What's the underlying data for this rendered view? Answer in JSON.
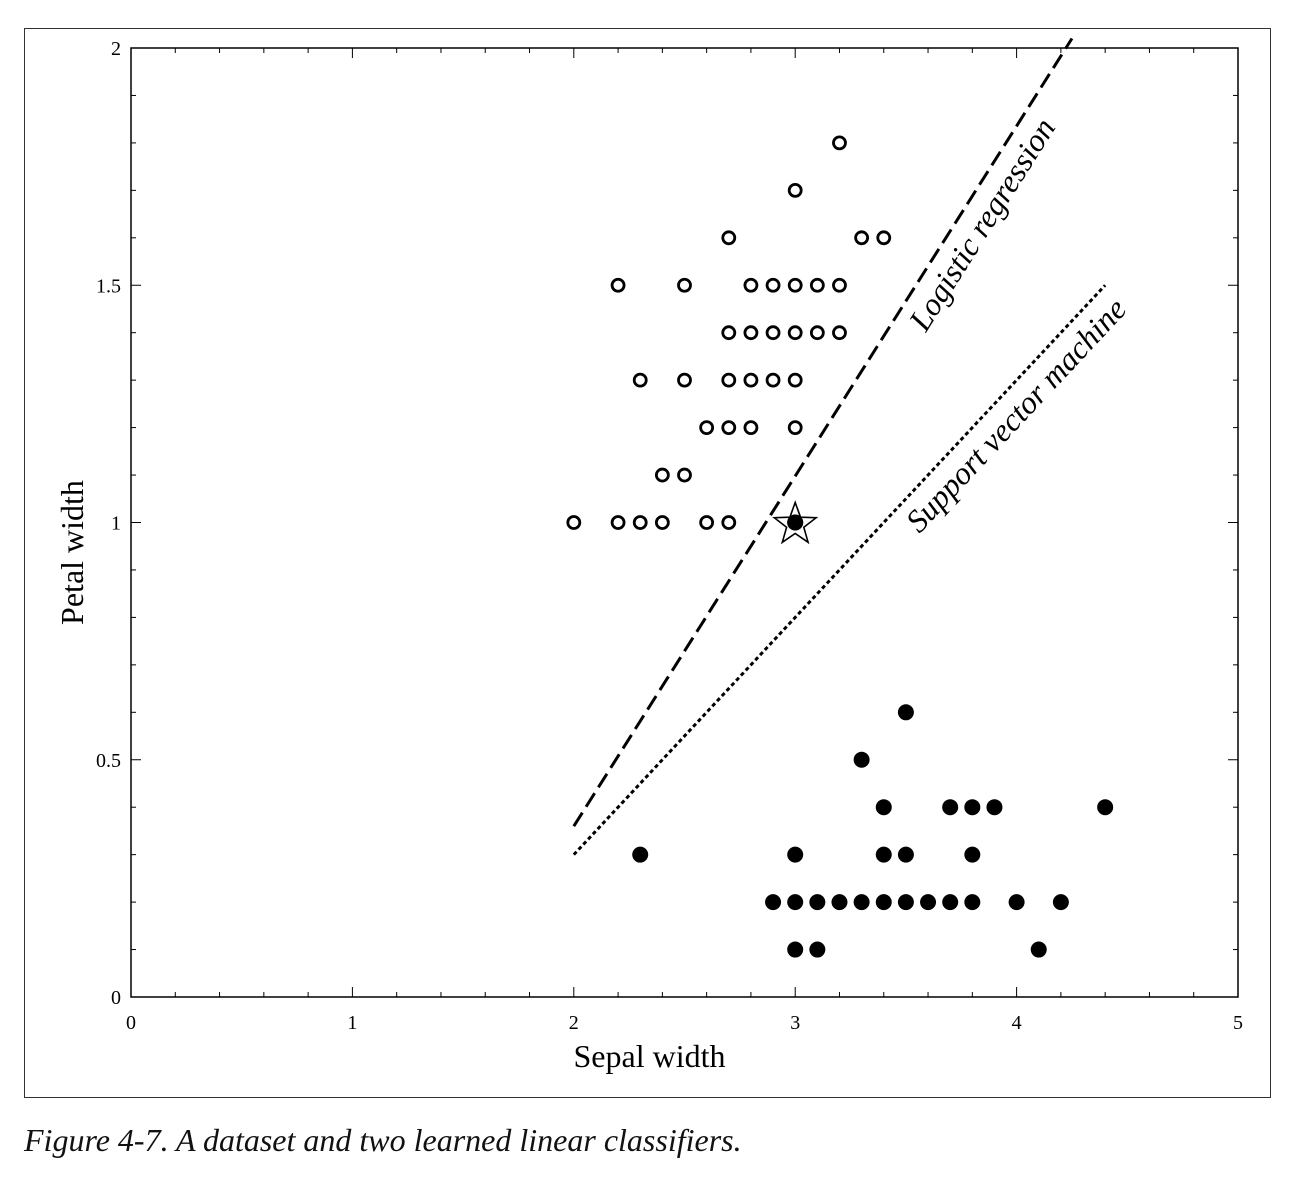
{
  "caption": "Figure 4-7. A dataset and two learned linear classifiers.",
  "chart_data": {
    "type": "scatter",
    "title": "",
    "xlabel": "Sepal width",
    "ylabel": "Petal width",
    "xlim": [
      0,
      5
    ],
    "ylim": [
      0,
      2
    ],
    "x_ticks": [
      0,
      1,
      2,
      3,
      4,
      5
    ],
    "y_ticks": [
      0,
      0.5,
      1,
      1.5,
      2
    ],
    "x_tick_labels": [
      "0",
      "1",
      "2",
      "3",
      "4",
      "5"
    ],
    "y_tick_labels": [
      "0",
      "0.5",
      "1",
      "1.5",
      "2"
    ],
    "grid": false,
    "series": [
      {
        "marker": "open-circle",
        "points": [
          [
            3.2,
            1.8
          ],
          [
            3.0,
            1.7
          ],
          [
            2.7,
            1.6
          ],
          [
            3.3,
            1.6
          ],
          [
            3.4,
            1.6
          ],
          [
            2.2,
            1.5
          ],
          [
            2.5,
            1.5
          ],
          [
            2.8,
            1.5
          ],
          [
            2.9,
            1.5
          ],
          [
            3.0,
            1.5
          ],
          [
            3.1,
            1.5
          ],
          [
            3.2,
            1.5
          ],
          [
            2.7,
            1.4
          ],
          [
            2.8,
            1.4
          ],
          [
            2.9,
            1.4
          ],
          [
            3.0,
            1.4
          ],
          [
            3.1,
            1.4
          ],
          [
            3.2,
            1.4
          ],
          [
            2.3,
            1.3
          ],
          [
            2.5,
            1.3
          ],
          [
            2.7,
            1.3
          ],
          [
            2.8,
            1.3
          ],
          [
            2.9,
            1.3
          ],
          [
            3.0,
            1.3
          ],
          [
            2.6,
            1.2
          ],
          [
            2.7,
            1.2
          ],
          [
            2.8,
            1.2
          ],
          [
            3.0,
            1.2
          ],
          [
            2.4,
            1.1
          ],
          [
            2.5,
            1.1
          ],
          [
            2.0,
            1.0
          ],
          [
            2.2,
            1.0
          ],
          [
            2.3,
            1.0
          ],
          [
            2.4,
            1.0
          ],
          [
            2.6,
            1.0
          ],
          [
            2.7,
            1.0
          ]
        ]
      },
      {
        "marker": "filled-circle",
        "points": [
          [
            3.0,
            1.0
          ],
          [
            3.5,
            0.6
          ],
          [
            3.3,
            0.5
          ],
          [
            3.4,
            0.4
          ],
          [
            3.7,
            0.4
          ],
          [
            3.8,
            0.4
          ],
          [
            3.9,
            0.4
          ],
          [
            4.4,
            0.4
          ],
          [
            2.3,
            0.3
          ],
          [
            3.0,
            0.3
          ],
          [
            3.4,
            0.3
          ],
          [
            3.5,
            0.3
          ],
          [
            3.8,
            0.3
          ],
          [
            2.9,
            0.2
          ],
          [
            3.0,
            0.2
          ],
          [
            3.1,
            0.2
          ],
          [
            3.2,
            0.2
          ],
          [
            3.3,
            0.2
          ],
          [
            3.4,
            0.2
          ],
          [
            3.5,
            0.2
          ],
          [
            3.6,
            0.2
          ],
          [
            3.7,
            0.2
          ],
          [
            3.8,
            0.2
          ],
          [
            4.0,
            0.2
          ],
          [
            4.2,
            0.2
          ],
          [
            3.0,
            0.1
          ],
          [
            3.1,
            0.1
          ],
          [
            4.1,
            0.1
          ]
        ]
      }
    ],
    "highlight": {
      "marker": "star",
      "point": [
        3.0,
        1.0
      ]
    },
    "lines": [
      {
        "name": "Logistic regression",
        "style": "dashed",
        "from": [
          2.0,
          0.36
        ],
        "to": [
          4.25,
          2.02
        ]
      },
      {
        "name": "Support vector machine",
        "style": "dotted",
        "from": [
          2.0,
          0.3
        ],
        "to": [
          4.4,
          1.5
        ]
      }
    ]
  }
}
